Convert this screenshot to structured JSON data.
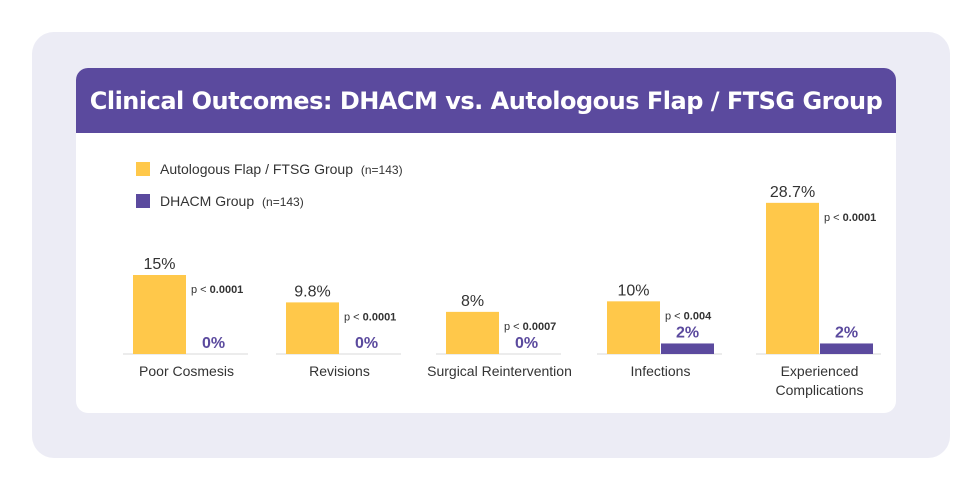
{
  "header": {
    "title": "Clinical Outcomes: DHACM vs. Autologous Flap / FTSG Group"
  },
  "colors": {
    "autologous": "#ffc84a",
    "dhacm": "#5b4a9e",
    "header_bg": "#5b4a9e",
    "panel_bg": "#ececf5"
  },
  "chart_data": {
    "type": "bar",
    "title": "Clinical Outcomes: DHACM vs. Autologous Flap / FTSG Group",
    "ylabel": "",
    "ylim": [
      0,
      30
    ],
    "grid": false,
    "legend_position": "top-left",
    "categories": [
      "Poor Cosmesis",
      "Revisions",
      "Surgical Reintervention",
      "Infections",
      "Experienced Complications"
    ],
    "category_lines": [
      [
        "Poor Cosmesis"
      ],
      [
        "Revisions"
      ],
      [
        "Surgical Reintervention"
      ],
      [
        "Infections"
      ],
      [
        "Experienced",
        "Complications"
      ]
    ],
    "series": [
      {
        "name": "Autologous Flap / FTSG Group",
        "n_label": "(n=143)",
        "values": [
          15,
          9.8,
          8,
          10,
          28.7
        ],
        "labels": [
          "15%",
          "9.8%",
          "8%",
          "10%",
          "28.7%"
        ]
      },
      {
        "name": "DHACM Group",
        "n_label": "(n=143)",
        "values": [
          0,
          0,
          0,
          2,
          2
        ],
        "labels": [
          "0%",
          "0%",
          "0%",
          "2%",
          "2%"
        ]
      }
    ],
    "p_values": [
      {
        "prefix": "p < ",
        "value": "0.0001"
      },
      {
        "prefix": "p < ",
        "value": "0.0001"
      },
      {
        "prefix": "p < ",
        "value": "0.0007"
      },
      {
        "prefix": "p < ",
        "value": "0.004"
      },
      {
        "prefix": "p < ",
        "value": "0.0001"
      }
    ]
  }
}
